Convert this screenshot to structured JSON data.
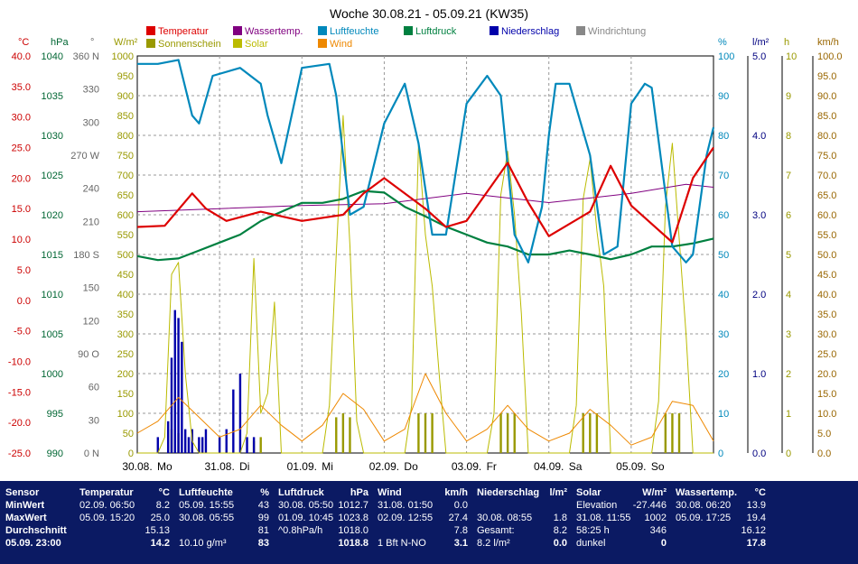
{
  "chart_data": {
    "type": "line",
    "title": "Woche 30.08.21 - 05.09.21 (KW35)",
    "x_labels": [
      "30.08.",
      "Mo",
      "31.08.",
      "Di",
      "01.09.",
      "Mi",
      "02.09.",
      "Do",
      "03.09.",
      "Fr",
      "04.09.",
      "Sa",
      "05.09.",
      "So"
    ],
    "x_days": [
      {
        "date": "30.08.",
        "day": "Mo"
      },
      {
        "date": "31.08.",
        "day": "Di"
      },
      {
        "date": "01.09.",
        "day": "Mi"
      },
      {
        "date": "02.09.",
        "day": "Do"
      },
      {
        "date": "03.09.",
        "day": "Fr"
      },
      {
        "date": "04.09.",
        "day": "Sa"
      },
      {
        "date": "05.09.",
        "day": "So"
      }
    ],
    "x_range": [
      "30.08. 00:00",
      "05.09. 23:59"
    ],
    "axes": [
      {
        "unit": "°C",
        "color": "#cc0000",
        "range": [
          -25,
          40
        ],
        "ticks": [
          "40.0",
          "35.0",
          "30.0",
          "25.0",
          "20.0",
          "15.0",
          "10.0",
          "5.0",
          "0.0",
          "-5.0",
          "-10.0",
          "-15.0",
          "-20.0",
          "-25.0"
        ]
      },
      {
        "unit": "hPa",
        "color": "#006633",
        "range": [
          990,
          1040
        ],
        "ticks": [
          "1040",
          "1035",
          "1030",
          "1025",
          "1020",
          "1015",
          "1010",
          "1005",
          "1000",
          "995",
          "990"
        ]
      },
      {
        "unit": "°",
        "color": "#666666",
        "range": [
          0,
          360
        ],
        "ticks": [
          "360 N",
          "330",
          "300",
          "270 W",
          "240",
          "210",
          "180 S",
          "150",
          "120",
          "90 O",
          "60",
          "30",
          "0 N"
        ]
      },
      {
        "unit": "W/m²",
        "color": "#999900",
        "range": [
          0,
          1000
        ],
        "ticks": [
          "1000",
          "950",
          "900",
          "850",
          "800",
          "750",
          "700",
          "650",
          "600",
          "550",
          "500",
          "450",
          "400",
          "350",
          "300",
          "250",
          "200",
          "150",
          "100",
          "50",
          "0"
        ]
      },
      {
        "unit": "%",
        "color": "#0088bb",
        "range": [
          0,
          100
        ],
        "ticks": [
          "100",
          "90",
          "80",
          "70",
          "60",
          "50",
          "40",
          "30",
          "20",
          "10",
          "0"
        ]
      },
      {
        "unit": "l/m²",
        "color": "#000080",
        "range": [
          0,
          5
        ],
        "ticks": [
          "5.0",
          "4.0",
          "3.0",
          "2.0",
          "1.0",
          "0.0"
        ]
      },
      {
        "unit": "h",
        "color": "#999900",
        "range": [
          0,
          10
        ],
        "ticks": [
          "10",
          "9",
          "8",
          "7",
          "6",
          "5",
          "4",
          "3",
          "2",
          "1",
          "0"
        ]
      },
      {
        "unit": "km/h",
        "color": "#996600",
        "range": [
          0,
          100
        ],
        "ticks": [
          "100.0",
          "95.0",
          "90.0",
          "85.0",
          "80.0",
          "75.0",
          "70.0",
          "65.0",
          "60.0",
          "55.0",
          "50.0",
          "45.0",
          "40.0",
          "35.0",
          "30.0",
          "25.0",
          "20.0",
          "15.0",
          "10.0",
          "5.0",
          "0.0"
        ]
      }
    ],
    "legend": [
      {
        "name": "Temperatur",
        "color": "#dd0000"
      },
      {
        "name": "Wassertemp.",
        "color": "#800080"
      },
      {
        "name": "Luftfeuchte",
        "color": "#0088bb"
      },
      {
        "name": "Luftdruck",
        "color": "#008040"
      },
      {
        "name": "Niederschlag",
        "color": "#0000aa"
      },
      {
        "name": "Windrichtung",
        "color": "#888888"
      },
      {
        "name": "Sonnenschein",
        "color": "#999900"
      },
      {
        "name": "Solar",
        "color": "#bbbb00"
      },
      {
        "name": "Wind",
        "color": "#ee8800"
      }
    ],
    "series": [
      {
        "name": "Temperatur",
        "axis": 0,
        "color": "#dd0000",
        "x_hours": [
          0,
          8,
          16,
          20,
          26,
          36,
          48,
          60,
          66,
          72,
          84,
          90,
          96,
          108,
          114,
          120,
          132,
          138,
          144,
          156,
          162,
          168
        ],
        "values": [
          12.0,
          12.2,
          17.5,
          15.0,
          13.0,
          14.5,
          13.0,
          14.0,
          17.5,
          20.0,
          15.0,
          12.0,
          13.0,
          22.5,
          16.0,
          10.5,
          14.5,
          22.0,
          15.5,
          9.5,
          20.0,
          25.0
        ]
      },
      {
        "name": "Wassertemp.",
        "axis": 0,
        "color": "#800080",
        "x_hours": [
          0,
          24,
          48,
          72,
          96,
          120,
          144,
          160,
          168
        ],
        "values": [
          14.5,
          15.0,
          15.5,
          15.8,
          17.5,
          16.0,
          17.5,
          19.0,
          18.5
        ]
      },
      {
        "name": "Luftfeuchte",
        "axis": 4,
        "color": "#0088bb",
        "x_hours": [
          0,
          6,
          12,
          16,
          18,
          22,
          30,
          36,
          38,
          42,
          48,
          56,
          58,
          62,
          66,
          72,
          78,
          82,
          86,
          90,
          96,
          102,
          106,
          110,
          114,
          118,
          120,
          122,
          126,
          132,
          136,
          140,
          144,
          148,
          150,
          156,
          160,
          162,
          166,
          168
        ],
        "values": [
          98,
          98,
          99,
          85,
          83,
          95,
          97,
          93,
          85,
          73,
          97,
          98,
          90,
          60,
          62,
          83,
          93,
          78,
          55,
          55,
          88,
          95,
          90,
          55,
          48,
          62,
          80,
          93,
          93,
          75,
          50,
          52,
          88,
          93,
          92,
          52,
          48,
          50,
          75,
          82
        ]
      },
      {
        "name": "Luftdruck",
        "axis": 1,
        "color": "#008040",
        "x_hours": [
          0,
          6,
          12,
          18,
          24,
          30,
          36,
          40,
          48,
          54,
          60,
          66,
          72,
          78,
          84,
          90,
          96,
          102,
          108,
          114,
          120,
          126,
          132,
          138,
          144,
          150,
          156,
          162,
          168
        ],
        "values": [
          1014.8,
          1014.3,
          1014.5,
          1015.5,
          1016.5,
          1017.5,
          1019.2,
          1020.0,
          1021.5,
          1021.5,
          1022.0,
          1023.0,
          1022.8,
          1021.0,
          1019.8,
          1018.5,
          1017.5,
          1016.5,
          1016.0,
          1015.0,
          1015.0,
          1015.5,
          1015.0,
          1014.4,
          1015.0,
          1016.0,
          1016.0,
          1016.4,
          1017.0
        ]
      },
      {
        "name": "Solar",
        "axis": 3,
        "color": "#bbbb00",
        "x_hours": [
          0,
          6,
          8,
          10,
          12,
          14,
          16,
          18,
          24,
          30,
          32,
          34,
          36,
          38,
          40,
          42,
          48,
          54,
          56,
          58,
          60,
          62,
          64,
          66,
          72,
          78,
          80,
          82,
          84,
          86,
          88,
          90,
          96,
          102,
          104,
          106,
          108,
          110,
          112,
          114,
          120,
          126,
          128,
          130,
          132,
          134,
          136,
          138,
          144,
          150,
          152,
          154,
          156,
          158,
          160,
          162,
          168
        ],
        "values": [
          0,
          0,
          40,
          450,
          480,
          200,
          30,
          0,
          0,
          0,
          50,
          490,
          100,
          150,
          380,
          0,
          0,
          0,
          120,
          500,
          850,
          520,
          80,
          0,
          0,
          0,
          120,
          780,
          550,
          420,
          200,
          0,
          0,
          0,
          100,
          650,
          760,
          600,
          350,
          0,
          0,
          0,
          120,
          640,
          740,
          560,
          420,
          0,
          0,
          0,
          130,
          620,
          780,
          540,
          300,
          0,
          0
        ]
      },
      {
        "name": "Wind",
        "axis": 7,
        "color": "#ee8800",
        "x_hours": [
          0,
          6,
          12,
          18,
          24,
          30,
          36,
          42,
          48,
          54,
          60,
          66,
          72,
          78,
          84,
          90,
          96,
          102,
          108,
          114,
          120,
          126,
          132,
          138,
          144,
          150,
          156,
          162,
          168
        ],
        "values": [
          5,
          8,
          14,
          9,
          4,
          6,
          12,
          7,
          3,
          7,
          15,
          11,
          3,
          6,
          20,
          10,
          3,
          6,
          12,
          6,
          3,
          5,
          11,
          7,
          2,
          4,
          13,
          12,
          3
        ]
      },
      {
        "name": "Sonnenschein",
        "axis": 6,
        "color": "#999900",
        "x_hours": [
          10,
          12,
          34,
          36,
          58,
          60,
          62,
          82,
          84,
          86,
          106,
          108,
          110,
          130,
          132,
          134,
          154,
          156,
          158
        ],
        "values": [
          0.6,
          0.5,
          0.3,
          0.4,
          0.9,
          1.0,
          0.9,
          1.0,
          1.0,
          1.0,
          1.0,
          1.0,
          1.0,
          1.0,
          1.0,
          1.0,
          1.0,
          1.0,
          1.0
        ]
      },
      {
        "name": "Niederschlag",
        "axis": 5,
        "color": "#0000aa",
        "x_hours": [
          6,
          9,
          10,
          11,
          12,
          13,
          14,
          15,
          16,
          18,
          19,
          20,
          24,
          26,
          28,
          30,
          32,
          34
        ],
        "values": [
          0.2,
          0.4,
          1.2,
          1.8,
          1.7,
          1.4,
          0.3,
          0.2,
          0.3,
          0.2,
          0.2,
          0.3,
          0.2,
          0.3,
          0.8,
          1.0,
          0.2,
          0.2
        ]
      }
    ]
  },
  "table": [
    {
      "header": "Sensor",
      "unit": "",
      "rows": [
        [
          "MinWert",
          ""
        ],
        [
          "MaxWert",
          ""
        ],
        [
          "Durchschnitt",
          ""
        ],
        [
          "05.09. 23:00",
          ""
        ]
      ]
    },
    {
      "header": "Temperatur",
      "unit": "°C",
      "rows": [
        [
          "02.09. 06:50",
          "8.2"
        ],
        [
          "05.09. 15:20",
          "25.0"
        ],
        [
          "",
          "15.13"
        ],
        [
          "",
          "14.2"
        ]
      ]
    },
    {
      "header": "Luftfeuchte",
      "unit": "%",
      "rows": [
        [
          "05.09. 15:55",
          "43"
        ],
        [
          "30.08. 05:55",
          "99"
        ],
        [
          "",
          "81"
        ],
        [
          "10.10 g/m³",
          "83"
        ]
      ]
    },
    {
      "header": "Luftdruck",
      "unit": "hPa",
      "rows": [
        [
          "30.08. 05:50",
          "1012.7"
        ],
        [
          "01.09. 10:45",
          "1023.8"
        ],
        [
          "^0.8hPa/h",
          "1018.0"
        ],
        [
          "",
          "1018.8"
        ]
      ]
    },
    {
      "header": "Wind",
      "unit": "km/h",
      "rows": [
        [
          "31.08. 01:50",
          "0.0"
        ],
        [
          "02.09. 12:55",
          "27.4"
        ],
        [
          "",
          "7.8"
        ],
        [
          "1 Bft N-NO",
          "3.1"
        ]
      ]
    },
    {
      "header": "Niederschlag",
      "unit": "l/m²",
      "rows": [
        [
          "",
          ""
        ],
        [
          "30.08. 08:55",
          "1.8"
        ],
        [
          "Gesamt:",
          "8.2"
        ],
        [
          "8.2 l/m²",
          "0.0"
        ]
      ]
    },
    {
      "header": "Solar",
      "unit": "W/m²",
      "rows": [
        [
          "Elevation",
          "-27.446"
        ],
        [
          "31.08. 11:55",
          "1002"
        ],
        [
          "58:25 h",
          "346"
        ],
        [
          "dunkel",
          "0"
        ]
      ]
    },
    {
      "header": "Wassertemp.",
      "unit": "°C",
      "rows": [
        [
          "30.08. 06:20",
          "13.9"
        ],
        [
          "05.09. 17:25",
          "19.4"
        ],
        [
          "",
          "16.12"
        ],
        [
          "",
          "17.8"
        ]
      ]
    }
  ]
}
